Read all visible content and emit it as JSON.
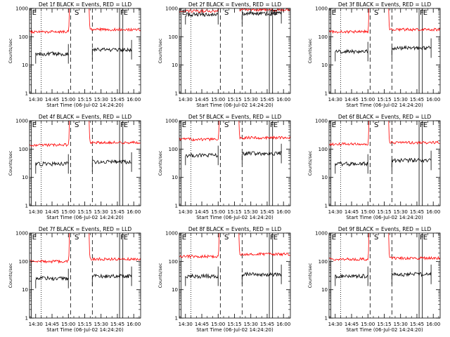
{
  "colors": {
    "background": "#ffffff",
    "axes": "#000000",
    "events": "#000000",
    "lld": "#ff0000"
  },
  "chart_data": [
    {
      "type": "line",
      "title": "Det 1f BLACK = Events, RED = LLD",
      "xlabel": "Start Time (06-Jul-02 14:24:20)",
      "ylabel": "Counts/sec",
      "y_scale": "log",
      "ylim": [
        1,
        1000
      ],
      "xlim": [
        "14:24:20",
        "16:06:20"
      ],
      "x_ticks": [
        "14:30",
        "14:45",
        "15:00",
        "15:15",
        "15:30",
        "15:45",
        "16:00"
      ],
      "y_ticks": [
        "1",
        "10",
        "100",
        "1000"
      ],
      "markers": [
        {
          "label": "E",
          "time": "14:26",
          "style": "solid"
        },
        {
          "label": "S",
          "time": "15:05",
          "style": "none"
        },
        {
          "label": "F",
          "time": "15:47",
          "style": "solid"
        },
        {
          "label": "E",
          "time": "15:50",
          "style": "solid"
        },
        {
          "label": "",
          "time": "14:35",
          "style": "dotted"
        },
        {
          "label": "",
          "time": "15:02",
          "style": "dashed"
        },
        {
          "label": "",
          "time": "15:22",
          "style": "dashed"
        }
      ],
      "series": [
        {
          "color": "red",
          "segments": [
            {
              "start": "14:24:20",
              "end": "15:00",
              "level": 150
            },
            {
              "start": "15:20",
              "end": "16:06:20",
              "level": 180
            }
          ]
        },
        {
          "color": "black",
          "segments": [
            {
              "start": "14:30",
              "end": "15:00",
              "level": 25
            },
            {
              "start": "15:22",
              "end": "15:58",
              "level": 35
            }
          ]
        }
      ]
    },
    {
      "type": "line",
      "title": "Det 2f BLACK = Events, RED = LLD",
      "xlabel": "Start Time (06-Jul-02 14:24:20)",
      "ylabel": "Counts/sec",
      "y_scale": "log",
      "ylim": [
        1,
        1000
      ],
      "xlim": [
        "14:24:20",
        "16:06:20"
      ],
      "x_ticks": [
        "14:30",
        "14:45",
        "15:00",
        "15:15",
        "15:30",
        "15:45",
        "16:00"
      ],
      "y_ticks": [
        "1",
        "10",
        "100",
        "1000"
      ],
      "markers": [
        {
          "label": "E",
          "time": "14:26",
          "style": "solid"
        },
        {
          "label": "S",
          "time": "15:05",
          "style": "none"
        },
        {
          "label": "F",
          "time": "15:47",
          "style": "solid"
        },
        {
          "label": "E",
          "time": "15:50",
          "style": "solid"
        },
        {
          "label": "",
          "time": "14:35",
          "style": "dotted"
        },
        {
          "label": "",
          "time": "15:02",
          "style": "dashed"
        },
        {
          "label": "",
          "time": "15:22",
          "style": "dashed"
        }
      ],
      "series": [
        {
          "color": "red",
          "segments": [
            {
              "start": "14:24:20",
              "end": "15:00",
              "level": 800
            },
            {
              "start": "15:20",
              "end": "16:06:20",
              "level": 900
            }
          ]
        },
        {
          "color": "black",
          "segments": [
            {
              "start": "14:30",
              "end": "15:00",
              "level": 600
            },
            {
              "start": "15:22",
              "end": "15:58",
              "level": 650
            }
          ]
        }
      ]
    },
    {
      "type": "line",
      "title": "Det 3f BLACK = Events, RED = LLD",
      "xlabel": "Start Time (06-Jul-02 14:24:20)",
      "ylabel": "Counts/sec",
      "y_scale": "log",
      "ylim": [
        1,
        1000
      ],
      "xlim": [
        "14:24:20",
        "16:06:20"
      ],
      "x_ticks": [
        "14:30",
        "14:45",
        "15:00",
        "15:15",
        "15:30",
        "15:45",
        "16:00"
      ],
      "y_ticks": [
        "1",
        "10",
        "100",
        "1000"
      ],
      "markers": [
        {
          "label": "E",
          "time": "14:26",
          "style": "solid"
        },
        {
          "label": "S",
          "time": "15:05",
          "style": "none"
        },
        {
          "label": "F",
          "time": "15:47",
          "style": "solid"
        },
        {
          "label": "E",
          "time": "15:50",
          "style": "solid"
        },
        {
          "label": "",
          "time": "14:35",
          "style": "dotted"
        },
        {
          "label": "",
          "time": "15:02",
          "style": "dashed"
        },
        {
          "label": "",
          "time": "15:22",
          "style": "dashed"
        }
      ],
      "series": [
        {
          "color": "red",
          "segments": [
            {
              "start": "14:24:20",
              "end": "15:00",
              "level": 150
            },
            {
              "start": "15:20",
              "end": "16:06:20",
              "level": 180
            }
          ]
        },
        {
          "color": "black",
          "segments": [
            {
              "start": "14:30",
              "end": "15:00",
              "level": 30
            },
            {
              "start": "15:22",
              "end": "15:58",
              "level": 40
            }
          ]
        }
      ]
    },
    {
      "type": "line",
      "title": "Det 4f BLACK = Events, RED = LLD",
      "xlabel": "Start Time (06-Jul-02 14:24:20)",
      "ylabel": "Counts/sec",
      "y_scale": "log",
      "ylim": [
        1,
        1000
      ],
      "xlim": [
        "14:24:20",
        "16:06:20"
      ],
      "x_ticks": [
        "14:30",
        "14:45",
        "15:00",
        "15:15",
        "15:30",
        "15:45",
        "16:00"
      ],
      "y_ticks": [
        "1",
        "10",
        "100",
        "1000"
      ],
      "markers": [
        {
          "label": "E",
          "time": "14:26",
          "style": "solid"
        },
        {
          "label": "S",
          "time": "15:05",
          "style": "none"
        },
        {
          "label": "F",
          "time": "15:47",
          "style": "solid"
        },
        {
          "label": "E",
          "time": "15:50",
          "style": "solid"
        },
        {
          "label": "",
          "time": "14:35",
          "style": "dotted"
        },
        {
          "label": "",
          "time": "15:02",
          "style": "dashed"
        },
        {
          "label": "",
          "time": "15:22",
          "style": "dashed"
        }
      ],
      "series": [
        {
          "color": "red",
          "segments": [
            {
              "start": "14:24:20",
              "end": "15:00",
              "level": 140
            },
            {
              "start": "15:20",
              "end": "16:06:20",
              "level": 170
            }
          ]
        },
        {
          "color": "black",
          "segments": [
            {
              "start": "14:30",
              "end": "15:00",
              "level": 30
            },
            {
              "start": "15:22",
              "end": "15:58",
              "level": 35
            }
          ]
        }
      ]
    },
    {
      "type": "line",
      "title": "Det 5f BLACK = Events, RED = LLD",
      "xlabel": "Start Time (06-Jul-02 14:24:20)",
      "ylabel": "Counts/sec",
      "y_scale": "log",
      "ylim": [
        1,
        1000
      ],
      "xlim": [
        "14:24:20",
        "16:06:20"
      ],
      "x_ticks": [
        "14:30",
        "14:45",
        "15:00",
        "15:15",
        "15:30",
        "15:45",
        "16:00"
      ],
      "y_ticks": [
        "1",
        "10",
        "100",
        "1000"
      ],
      "markers": [
        {
          "label": "E",
          "time": "14:26",
          "style": "solid"
        },
        {
          "label": "S",
          "time": "15:05",
          "style": "none"
        },
        {
          "label": "F",
          "time": "15:47",
          "style": "solid"
        },
        {
          "label": "E",
          "time": "15:50",
          "style": "solid"
        },
        {
          "label": "",
          "time": "14:35",
          "style": "dotted"
        },
        {
          "label": "",
          "time": "15:02",
          "style": "dashed"
        },
        {
          "label": "",
          "time": "15:22",
          "style": "dashed"
        }
      ],
      "series": [
        {
          "color": "red",
          "segments": [
            {
              "start": "14:24:20",
              "end": "15:00",
              "level": 220
            },
            {
              "start": "15:20",
              "end": "16:06:20",
              "level": 250
            }
          ]
        },
        {
          "color": "black",
          "segments": [
            {
              "start": "14:30",
              "end": "15:00",
              "level": 60
            },
            {
              "start": "15:22",
              "end": "15:58",
              "level": 70
            }
          ]
        }
      ]
    },
    {
      "type": "line",
      "title": "Det 6f BLACK = Events, RED = LLD",
      "xlabel": "Start Time (06-Jul-02 14:24:20)",
      "ylabel": "Counts/sec",
      "y_scale": "log",
      "ylim": [
        1,
        1000
      ],
      "xlim": [
        "14:24:20",
        "16:06:20"
      ],
      "x_ticks": [
        "14:30",
        "14:45",
        "15:00",
        "15:15",
        "15:30",
        "15:45",
        "16:00"
      ],
      "y_ticks": [
        "1",
        "10",
        "100",
        "1000"
      ],
      "markers": [
        {
          "label": "E",
          "time": "14:26",
          "style": "solid"
        },
        {
          "label": "S",
          "time": "15:05",
          "style": "none"
        },
        {
          "label": "F",
          "time": "15:47",
          "style": "solid"
        },
        {
          "label": "E",
          "time": "15:50",
          "style": "solid"
        },
        {
          "label": "",
          "time": "14:35",
          "style": "dotted"
        },
        {
          "label": "",
          "time": "15:02",
          "style": "dashed"
        },
        {
          "label": "",
          "time": "15:22",
          "style": "dashed"
        }
      ],
      "series": [
        {
          "color": "red",
          "segments": [
            {
              "start": "14:24:20",
              "end": "15:00",
              "level": 150
            },
            {
              "start": "15:20",
              "end": "16:06:20",
              "level": 170
            }
          ]
        },
        {
          "color": "black",
          "segments": [
            {
              "start": "14:30",
              "end": "15:00",
              "level": 30
            },
            {
              "start": "15:22",
              "end": "15:58",
              "level": 40
            }
          ]
        }
      ]
    },
    {
      "type": "line",
      "title": "Det 7f BLACK = Events, RED = LLD",
      "xlabel": "Start Time (06-Jul-02 14:24:20)",
      "ylabel": "Counts/sec",
      "y_scale": "log",
      "ylim": [
        1,
        1000
      ],
      "xlim": [
        "14:24:20",
        "16:06:20"
      ],
      "x_ticks": [
        "14:30",
        "14:45",
        "15:00",
        "15:15",
        "15:30",
        "15:45",
        "16:00"
      ],
      "y_ticks": [
        "1",
        "10",
        "100",
        "1000"
      ],
      "markers": [
        {
          "label": "E",
          "time": "14:26",
          "style": "solid"
        },
        {
          "label": "S",
          "time": "15:05",
          "style": "none"
        },
        {
          "label": "F",
          "time": "15:47",
          "style": "solid"
        },
        {
          "label": "E",
          "time": "15:50",
          "style": "solid"
        },
        {
          "label": "",
          "time": "14:35",
          "style": "dotted"
        },
        {
          "label": "",
          "time": "15:02",
          "style": "dashed"
        },
        {
          "label": "",
          "time": "15:22",
          "style": "dashed"
        }
      ],
      "series": [
        {
          "color": "red",
          "segments": [
            {
              "start": "14:24:20",
              "end": "15:00",
              "level": 100
            },
            {
              "start": "15:20",
              "end": "16:06:20",
              "level": 120
            }
          ]
        },
        {
          "color": "black",
          "segments": [
            {
              "start": "14:30",
              "end": "15:00",
              "level": 25
            },
            {
              "start": "15:22",
              "end": "15:58",
              "level": 30
            }
          ]
        }
      ]
    },
    {
      "type": "line",
      "title": "Det 8f BLACK = Events, RED = LLD",
      "xlabel": "Start Time (06-Jul-02 14:24:20)",
      "ylabel": "Counts/sec",
      "y_scale": "log",
      "ylim": [
        1,
        1000
      ],
      "xlim": [
        "14:24:20",
        "16:06:20"
      ],
      "x_ticks": [
        "14:30",
        "14:45",
        "15:00",
        "15:15",
        "15:30",
        "15:45",
        "16:00"
      ],
      "y_ticks": [
        "1",
        "10",
        "100",
        "1000"
      ],
      "markers": [
        {
          "label": "E",
          "time": "14:26",
          "style": "solid"
        },
        {
          "label": "S",
          "time": "15:05",
          "style": "none"
        },
        {
          "label": "F",
          "time": "15:47",
          "style": "solid"
        },
        {
          "label": "E",
          "time": "15:50",
          "style": "solid"
        },
        {
          "label": "",
          "time": "14:35",
          "style": "dotted"
        },
        {
          "label": "",
          "time": "15:02",
          "style": "dashed"
        },
        {
          "label": "",
          "time": "15:22",
          "style": "dashed"
        }
      ],
      "series": [
        {
          "color": "red",
          "segments": [
            {
              "start": "14:24:20",
              "end": "15:00",
              "level": 150
            },
            {
              "start": "15:20",
              "end": "16:06:20",
              "level": 180
            }
          ]
        },
        {
          "color": "black",
          "segments": [
            {
              "start": "14:30",
              "end": "15:00",
              "level": 30
            },
            {
              "start": "15:22",
              "end": "15:58",
              "level": 35
            }
          ]
        }
      ]
    },
    {
      "type": "line",
      "title": "Det 9f BLACK = Events, RED = LLD",
      "xlabel": "Start Time (06-Jul-02 14:24:20)",
      "ylabel": "Counts/sec",
      "y_scale": "log",
      "ylim": [
        1,
        1000
      ],
      "xlim": [
        "14:24:20",
        "16:06:20"
      ],
      "x_ticks": [
        "14:30",
        "14:45",
        "15:00",
        "15:15",
        "15:30",
        "15:45",
        "16:00"
      ],
      "y_ticks": [
        "1",
        "10",
        "100",
        "1000"
      ],
      "markers": [
        {
          "label": "E",
          "time": "14:26",
          "style": "solid"
        },
        {
          "label": "S",
          "time": "15:05",
          "style": "none"
        },
        {
          "label": "F",
          "time": "15:47",
          "style": "solid"
        },
        {
          "label": "E",
          "time": "15:50",
          "style": "solid"
        },
        {
          "label": "",
          "time": "14:35",
          "style": "dotted"
        },
        {
          "label": "",
          "time": "15:02",
          "style": "dashed"
        },
        {
          "label": "",
          "time": "15:22",
          "style": "dashed"
        }
      ],
      "series": [
        {
          "color": "red",
          "segments": [
            {
              "start": "14:24:20",
              "end": "15:00",
              "level": 120
            },
            {
              "start": "15:20",
              "end": "16:06:20",
              "level": 130
            }
          ]
        },
        {
          "color": "black",
          "segments": [
            {
              "start": "14:30",
              "end": "15:00",
              "level": 30
            },
            {
              "start": "15:22",
              "end": "15:58",
              "level": 35
            }
          ]
        }
      ]
    }
  ]
}
